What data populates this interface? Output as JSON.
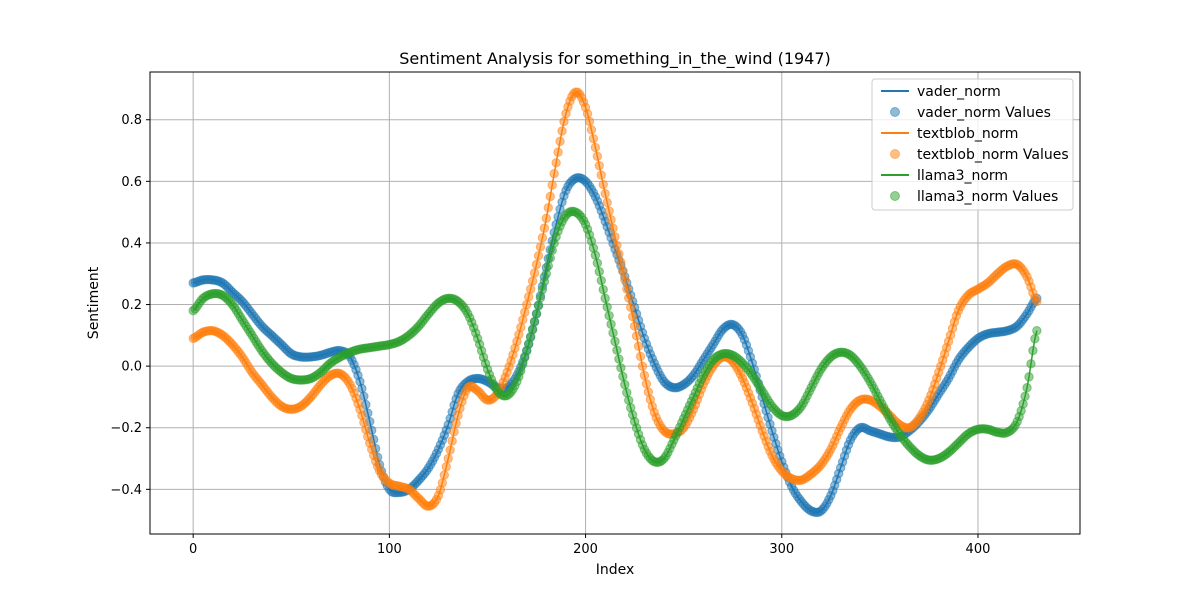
{
  "chart_data": {
    "type": "line",
    "title": "Sentiment Analysis for something_in_the_wind (1947)",
    "xlabel": "Index",
    "ylabel": "Sentiment",
    "xlim": [
      -22,
      452
    ],
    "ylim": [
      -0.545,
      0.955
    ],
    "x_ticks": [
      0,
      100,
      200,
      300,
      400
    ],
    "y_ticks": [
      -0.4,
      -0.2,
      0.0,
      0.2,
      0.4,
      0.6,
      0.8
    ],
    "y_tick_labels": [
      "−0.4",
      "−0.2",
      "0.0",
      "0.2",
      "0.4",
      "0.6",
      "0.8"
    ],
    "grid": true,
    "legend_position": "top-right",
    "legend": [
      {
        "label": "vader_norm",
        "kind": "line",
        "color": "#1f77b4"
      },
      {
        "label": "vader_norm Values",
        "kind": "marker",
        "color": "#1f77b4"
      },
      {
        "label": "textblob_norm",
        "kind": "line",
        "color": "#ff7f0e"
      },
      {
        "label": "textblob_norm Values",
        "kind": "marker",
        "color": "#ff7f0e"
      },
      {
        "label": "llama3_norm",
        "kind": "line",
        "color": "#2ca02c"
      },
      {
        "label": "llama3_norm Values",
        "kind": "marker",
        "color": "#2ca02c"
      }
    ],
    "series": [
      {
        "name": "vader_norm",
        "color": "#1f77b4",
        "points": [
          [
            0,
            0.27
          ],
          [
            5,
            0.28
          ],
          [
            10,
            0.28
          ],
          [
            15,
            0.27
          ],
          [
            20,
            0.24
          ],
          [
            25,
            0.21
          ],
          [
            30,
            0.17
          ],
          [
            35,
            0.13
          ],
          [
            40,
            0.1
          ],
          [
            45,
            0.07
          ],
          [
            50,
            0.04
          ],
          [
            55,
            0.03
          ],
          [
            60,
            0.03
          ],
          [
            65,
            0.035
          ],
          [
            70,
            0.045
          ],
          [
            75,
            0.05
          ],
          [
            80,
            0.03
          ],
          [
            85,
            -0.05
          ],
          [
            90,
            -0.18
          ],
          [
            95,
            -0.32
          ],
          [
            100,
            -0.4
          ],
          [
            105,
            -0.41
          ],
          [
            110,
            -0.4
          ],
          [
            115,
            -0.37
          ],
          [
            120,
            -0.33
          ],
          [
            125,
            -0.27
          ],
          [
            130,
            -0.19
          ],
          [
            135,
            -0.09
          ],
          [
            140,
            -0.05
          ],
          [
            145,
            -0.04
          ],
          [
            150,
            -0.05
          ],
          [
            155,
            -0.07
          ],
          [
            160,
            -0.07
          ],
          [
            165,
            -0.03
          ],
          [
            170,
            0.05
          ],
          [
            175,
            0.17
          ],
          [
            180,
            0.32
          ],
          [
            185,
            0.46
          ],
          [
            190,
            0.57
          ],
          [
            195,
            0.61
          ],
          [
            200,
            0.6
          ],
          [
            205,
            0.55
          ],
          [
            210,
            0.47
          ],
          [
            215,
            0.38
          ],
          [
            220,
            0.29
          ],
          [
            225,
            0.19
          ],
          [
            230,
            0.09
          ],
          [
            235,
            0.01
          ],
          [
            240,
            -0.05
          ],
          [
            245,
            -0.07
          ],
          [
            250,
            -0.06
          ],
          [
            255,
            -0.03
          ],
          [
            260,
            0.02
          ],
          [
            265,
            0.07
          ],
          [
            270,
            0.12
          ],
          [
            275,
            0.135
          ],
          [
            280,
            0.1
          ],
          [
            285,
            0.01
          ],
          [
            290,
            -0.1
          ],
          [
            295,
            -0.21
          ],
          [
            300,
            -0.31
          ],
          [
            305,
            -0.39
          ],
          [
            310,
            -0.44
          ],
          [
            315,
            -0.47
          ],
          [
            320,
            -0.47
          ],
          [
            325,
            -0.42
          ],
          [
            330,
            -0.33
          ],
          [
            335,
            -0.24
          ],
          [
            340,
            -0.2
          ],
          [
            345,
            -0.21
          ],
          [
            350,
            -0.22
          ],
          [
            355,
            -0.23
          ],
          [
            360,
            -0.23
          ],
          [
            365,
            -0.21
          ],
          [
            370,
            -0.18
          ],
          [
            375,
            -0.14
          ],
          [
            380,
            -0.09
          ],
          [
            385,
            -0.04
          ],
          [
            390,
            0.02
          ],
          [
            395,
            0.06
          ],
          [
            400,
            0.09
          ],
          [
            405,
            0.105
          ],
          [
            410,
            0.11
          ],
          [
            415,
            0.115
          ],
          [
            420,
            0.13
          ],
          [
            425,
            0.17
          ],
          [
            430,
            0.22
          ]
        ]
      },
      {
        "name": "textblob_norm",
        "color": "#ff7f0e",
        "points": [
          [
            0,
            0.09
          ],
          [
            5,
            0.11
          ],
          [
            10,
            0.115
          ],
          [
            15,
            0.1
          ],
          [
            20,
            0.07
          ],
          [
            25,
            0.03
          ],
          [
            30,
            -0.02
          ],
          [
            35,
            -0.06
          ],
          [
            40,
            -0.1
          ],
          [
            45,
            -0.13
          ],
          [
            50,
            -0.14
          ],
          [
            55,
            -0.13
          ],
          [
            60,
            -0.1
          ],
          [
            65,
            -0.06
          ],
          [
            70,
            -0.03
          ],
          [
            75,
            -0.025
          ],
          [
            80,
            -0.06
          ],
          [
            85,
            -0.14
          ],
          [
            90,
            -0.25
          ],
          [
            95,
            -0.34
          ],
          [
            100,
            -0.38
          ],
          [
            105,
            -0.39
          ],
          [
            110,
            -0.4
          ],
          [
            115,
            -0.43
          ],
          [
            120,
            -0.455
          ],
          [
            125,
            -0.42
          ],
          [
            130,
            -0.3
          ],
          [
            135,
            -0.16
          ],
          [
            140,
            -0.07
          ],
          [
            145,
            -0.08
          ],
          [
            150,
            -0.11
          ],
          [
            155,
            -0.09
          ],
          [
            160,
            -0.02
          ],
          [
            165,
            0.08
          ],
          [
            170,
            0.2
          ],
          [
            175,
            0.33
          ],
          [
            180,
            0.48
          ],
          [
            185,
            0.66
          ],
          [
            190,
            0.82
          ],
          [
            195,
            0.89
          ],
          [
            200,
            0.84
          ],
          [
            205,
            0.71
          ],
          [
            210,
            0.56
          ],
          [
            215,
            0.42
          ],
          [
            220,
            0.28
          ],
          [
            225,
            0.13
          ],
          [
            230,
            -0.03
          ],
          [
            235,
            -0.15
          ],
          [
            240,
            -0.21
          ],
          [
            245,
            -0.22
          ],
          [
            250,
            -0.2
          ],
          [
            255,
            -0.14
          ],
          [
            260,
            -0.06
          ],
          [
            265,
            0.0
          ],
          [
            270,
            0.03
          ],
          [
            275,
            0.015
          ],
          [
            280,
            -0.04
          ],
          [
            285,
            -0.12
          ],
          [
            290,
            -0.21
          ],
          [
            295,
            -0.29
          ],
          [
            300,
            -0.34
          ],
          [
            305,
            -0.365
          ],
          [
            310,
            -0.37
          ],
          [
            315,
            -0.35
          ],
          [
            320,
            -0.32
          ],
          [
            325,
            -0.27
          ],
          [
            330,
            -0.2
          ],
          [
            335,
            -0.14
          ],
          [
            340,
            -0.11
          ],
          [
            345,
            -0.11
          ],
          [
            350,
            -0.13
          ],
          [
            355,
            -0.16
          ],
          [
            360,
            -0.19
          ],
          [
            365,
            -0.2
          ],
          [
            370,
            -0.17
          ],
          [
            375,
            -0.11
          ],
          [
            380,
            -0.02
          ],
          [
            385,
            0.08
          ],
          [
            390,
            0.18
          ],
          [
            395,
            0.23
          ],
          [
            400,
            0.25
          ],
          [
            405,
            0.27
          ],
          [
            410,
            0.3
          ],
          [
            415,
            0.325
          ],
          [
            420,
            0.33
          ],
          [
            425,
            0.29
          ],
          [
            430,
            0.21
          ]
        ]
      },
      {
        "name": "llama3_norm",
        "color": "#2ca02c",
        "points": [
          [
            0,
            0.18
          ],
          [
            5,
            0.22
          ],
          [
            10,
            0.235
          ],
          [
            15,
            0.23
          ],
          [
            20,
            0.2
          ],
          [
            25,
            0.15
          ],
          [
            30,
            0.1
          ],
          [
            35,
            0.05
          ],
          [
            40,
            0.01
          ],
          [
            45,
            -0.02
          ],
          [
            50,
            -0.04
          ],
          [
            55,
            -0.045
          ],
          [
            60,
            -0.04
          ],
          [
            65,
            -0.02
          ],
          [
            70,
            0.01
          ],
          [
            75,
            0.03
          ],
          [
            80,
            0.045
          ],
          [
            85,
            0.055
          ],
          [
            90,
            0.06
          ],
          [
            95,
            0.065
          ],
          [
            100,
            0.07
          ],
          [
            105,
            0.08
          ],
          [
            110,
            0.1
          ],
          [
            115,
            0.13
          ],
          [
            120,
            0.17
          ],
          [
            125,
            0.205
          ],
          [
            130,
            0.22
          ],
          [
            135,
            0.21
          ],
          [
            140,
            0.17
          ],
          [
            145,
            0.09
          ],
          [
            150,
            -0.01
          ],
          [
            155,
            -0.08
          ],
          [
            160,
            -0.095
          ],
          [
            165,
            -0.05
          ],
          [
            170,
            0.05
          ],
          [
            175,
            0.17
          ],
          [
            180,
            0.3
          ],
          [
            185,
            0.42
          ],
          [
            190,
            0.49
          ],
          [
            195,
            0.5
          ],
          [
            200,
            0.46
          ],
          [
            205,
            0.36
          ],
          [
            210,
            0.22
          ],
          [
            215,
            0.08
          ],
          [
            220,
            -0.06
          ],
          [
            225,
            -0.18
          ],
          [
            230,
            -0.27
          ],
          [
            235,
            -0.31
          ],
          [
            240,
            -0.3
          ],
          [
            245,
            -0.24
          ],
          [
            250,
            -0.17
          ],
          [
            255,
            -0.1
          ],
          [
            260,
            -0.03
          ],
          [
            265,
            0.02
          ],
          [
            270,
            0.04
          ],
          [
            275,
            0.035
          ],
          [
            280,
            0.01
          ],
          [
            285,
            -0.03
          ],
          [
            290,
            -0.08
          ],
          [
            295,
            -0.13
          ],
          [
            300,
            -0.16
          ],
          [
            305,
            -0.16
          ],
          [
            310,
            -0.13
          ],
          [
            315,
            -0.07
          ],
          [
            320,
            -0.01
          ],
          [
            325,
            0.03
          ],
          [
            330,
            0.045
          ],
          [
            335,
            0.035
          ],
          [
            340,
            0.0
          ],
          [
            345,
            -0.05
          ],
          [
            350,
            -0.11
          ],
          [
            355,
            -0.17
          ],
          [
            360,
            -0.22
          ],
          [
            365,
            -0.26
          ],
          [
            370,
            -0.29
          ],
          [
            375,
            -0.305
          ],
          [
            380,
            -0.3
          ],
          [
            385,
            -0.28
          ],
          [
            390,
            -0.25
          ],
          [
            395,
            -0.22
          ],
          [
            400,
            -0.205
          ],
          [
            405,
            -0.205
          ],
          [
            410,
            -0.215
          ],
          [
            415,
            -0.215
          ],
          [
            420,
            -0.18
          ],
          [
            425,
            -0.07
          ],
          [
            430,
            0.115
          ]
        ]
      }
    ]
  }
}
